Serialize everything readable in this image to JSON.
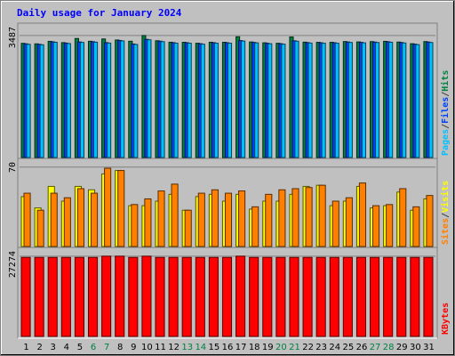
{
  "chart_data": {
    "type": "bar",
    "title": "Daily usage for January 2024",
    "categories": [
      "1",
      "2",
      "3",
      "4",
      "5",
      "6",
      "7",
      "8",
      "9",
      "10",
      "11",
      "12",
      "13",
      "14",
      "15",
      "16",
      "17",
      "18",
      "19",
      "20",
      "21",
      "22",
      "23",
      "24",
      "25",
      "26",
      "27",
      "28",
      "29",
      "30",
      "31"
    ],
    "weekend_days": [
      "6",
      "7",
      "13",
      "14",
      "20",
      "21",
      "27",
      "28"
    ],
    "panels": [
      {
        "name": "hits-files-pages",
        "ymax_label": "3487",
        "ymax": 3487,
        "legend": [
          "Pages",
          "/",
          "Files",
          "/",
          "Hits"
        ],
        "legend_colors": [
          "#00c0ff",
          "#404040",
          "#0040ff",
          "#404040",
          "#008040"
        ],
        "series": [
          {
            "name": "Hits",
            "color": "#008040",
            "values": [
              3264,
              3249,
              3320,
              3284,
              3402,
              3323,
              3389,
              3359,
              3324,
              3487,
              3338,
              3295,
              3294,
              3267,
              3295,
              3294,
              3452,
              3303,
              3279,
              3266,
              3446,
              3298,
              3293,
              3293,
              3315,
              3304,
              3313,
              3321,
              3300,
              3253,
              3314
            ]
          },
          {
            "name": "Files",
            "color": "#0040ff",
            "values": [
              3250,
              3236,
              3307,
              3271,
              3303,
              3310,
              3284,
              3346,
              3245,
              3378,
              3325,
              3282,
              3281,
              3254,
              3282,
              3281,
              3343,
              3290,
              3266,
              3253,
              3337,
              3285,
              3280,
              3280,
              3302,
              3291,
              3300,
              3308,
              3287,
              3240,
              3301
            ]
          },
          {
            "name": "Pages",
            "color": "#00c0ff",
            "values": [
              3237,
              3223,
              3294,
              3258,
              3290,
              3297,
              3271,
              3333,
              3232,
              3365,
              3312,
              3269,
              3268,
              3241,
              3269,
              3268,
              3330,
              3277,
              3253,
              3240,
              3324,
              3272,
              3267,
              3267,
              3289,
              3278,
              3287,
              3295,
              3274,
              3227,
              3288
            ]
          }
        ]
      },
      {
        "name": "visits-sites",
        "ymax_label": "70",
        "ymax": 70,
        "legend": [
          "Sites",
          "/",
          "Visits"
        ],
        "legend_colors": [
          "#ff8000",
          "#404040",
          "#ffff00"
        ],
        "series": [
          {
            "name": "Visits",
            "color": "#ffff00",
            "values": [
              44,
              34,
              53,
              40,
              53,
              50,
              64,
              67,
              36,
              36,
              40,
              46,
              32,
              44,
              46,
              40,
              46,
              33,
              40,
              40,
              46,
              53,
              54,
              36,
              40,
              53,
              34,
              36,
              48,
              32,
              42
            ]
          },
          {
            "name": "Sites",
            "color": "#ff8000",
            "values": [
              47,
              32,
              47,
              43,
              51,
              47,
              69,
              67,
              37,
              42,
              49,
              55,
              32,
              47,
              50,
              47,
              49,
              35,
              46,
              50,
              51,
              52,
              54,
              40,
              43,
              56,
              36,
              37,
              51,
              35,
              45
            ]
          }
        ]
      },
      {
        "name": "kbytes",
        "ymax_label": "27274",
        "ymax": 27274,
        "legend": [
          "KBytes"
        ],
        "legend_colors": [
          "#ff0000"
        ],
        "series": [
          {
            "name": "KBytes",
            "color": "#ff0000",
            "values": [
              26850,
              26850,
              26850,
              26850,
              26850,
              26850,
              27274,
              27274,
              26850,
              27274,
              26850,
              26850,
              26850,
              26850,
              26850,
              26850,
              27274,
              26850,
              26850,
              26850,
              26850,
              26850,
              26850,
              26850,
              26850,
              26850,
              26850,
              26850,
              26850,
              26850,
              26850
            ]
          }
        ]
      }
    ]
  },
  "colors": {
    "background": "#c0c0c0",
    "title": "#0000ff",
    "weekday_label": "#000000",
    "weekend_label": "#008040"
  }
}
